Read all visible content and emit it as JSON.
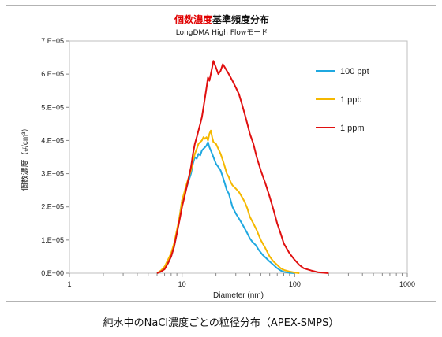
{
  "chart_data": {
    "type": "line",
    "title_parts": [
      {
        "text": "個数濃度",
        "color": "#e00000"
      },
      {
        "text": "基準頻度分布",
        "color": "#111111"
      }
    ],
    "subtitle": "LongDMA High Flowモード",
    "xlabel": "Diameter (nm)",
    "ylabel": "個数濃度（#/cm³）",
    "x_scale": "log",
    "xlim": [
      1,
      1000
    ],
    "ylim": [
      0,
      700000
    ],
    "x_ticks": [
      {
        "value": 1,
        "label": "1"
      },
      {
        "value": 10,
        "label": "10"
      },
      {
        "value": 100,
        "label": "100"
      },
      {
        "value": 1000,
        "label": "1000"
      }
    ],
    "y_ticks": [
      {
        "value": 0,
        "label": "0.E+00"
      },
      {
        "value": 100000,
        "label": "1.E+05"
      },
      {
        "value": 200000,
        "label": "2.E+05"
      },
      {
        "value": 300000,
        "label": "3.E+05"
      },
      {
        "value": 400000,
        "label": "4.E+05"
      },
      {
        "value": 500000,
        "label": "5.E+05"
      },
      {
        "value": 600000,
        "label": "6.E+05"
      },
      {
        "value": 700000,
        "label": "7.E+05"
      }
    ],
    "grid": false,
    "legend_position": "top-right",
    "series": [
      {
        "name": "100 ppt",
        "color": "#1fa8e0",
        "points": [
          [
            6.0,
            0
          ],
          [
            6.5,
            5000
          ],
          [
            7.0,
            15000
          ],
          [
            7.5,
            30000
          ],
          [
            8.0,
            50000
          ],
          [
            8.5,
            80000
          ],
          [
            9.0,
            120000
          ],
          [
            9.5,
            170000
          ],
          [
            10.0,
            220000
          ],
          [
            10.5,
            240000
          ],
          [
            11.0,
            260000
          ],
          [
            11.5,
            280000
          ],
          [
            12.0,
            300000
          ],
          [
            12.5,
            330000
          ],
          [
            13.0,
            350000
          ],
          [
            13.5,
            345000
          ],
          [
            14.0,
            360000
          ],
          [
            14.5,
            355000
          ],
          [
            15.0,
            370000
          ],
          [
            15.5,
            375000
          ],
          [
            16.0,
            380000
          ],
          [
            16.5,
            385000
          ],
          [
            17.0,
            395000
          ],
          [
            17.5,
            380000
          ],
          [
            18.0,
            370000
          ],
          [
            18.5,
            360000
          ],
          [
            19.0,
            350000
          ],
          [
            20.0,
            330000
          ],
          [
            21.0,
            320000
          ],
          [
            22.0,
            310000
          ],
          [
            23.0,
            290000
          ],
          [
            24.0,
            270000
          ],
          [
            25.0,
            250000
          ],
          [
            26.0,
            240000
          ],
          [
            27.0,
            220000
          ],
          [
            28.0,
            200000
          ],
          [
            30.0,
            180000
          ],
          [
            32.0,
            165000
          ],
          [
            34.0,
            150000
          ],
          [
            36.0,
            135000
          ],
          [
            38.0,
            120000
          ],
          [
            40.0,
            105000
          ],
          [
            42.0,
            95000
          ],
          [
            45.0,
            85000
          ],
          [
            48.0,
            70000
          ],
          [
            52.0,
            55000
          ],
          [
            56.0,
            45000
          ],
          [
            60.0,
            35000
          ],
          [
            65.0,
            25000
          ],
          [
            70.0,
            15000
          ],
          [
            75.0,
            8000
          ],
          [
            80.0,
            4000
          ],
          [
            90.0,
            1000
          ],
          [
            100.0,
            0
          ]
        ]
      },
      {
        "name": "1 ppb",
        "color": "#f5b800",
        "points": [
          [
            6.0,
            0
          ],
          [
            6.5,
            8000
          ],
          [
            7.0,
            20000
          ],
          [
            7.5,
            40000
          ],
          [
            8.0,
            60000
          ],
          [
            8.5,
            90000
          ],
          [
            9.0,
            130000
          ],
          [
            9.5,
            170000
          ],
          [
            10.0,
            220000
          ],
          [
            10.5,
            245000
          ],
          [
            11.0,
            270000
          ],
          [
            11.5,
            290000
          ],
          [
            12.0,
            310000
          ],
          [
            12.5,
            340000
          ],
          [
            13.0,
            360000
          ],
          [
            13.5,
            375000
          ],
          [
            14.0,
            390000
          ],
          [
            14.5,
            395000
          ],
          [
            15.0,
            400000
          ],
          [
            15.5,
            410000
          ],
          [
            16.0,
            405000
          ],
          [
            16.5,
            410000
          ],
          [
            17.0,
            400000
          ],
          [
            17.5,
            420000
          ],
          [
            18.0,
            430000
          ],
          [
            18.5,
            410000
          ],
          [
            19.0,
            395000
          ],
          [
            20.0,
            390000
          ],
          [
            21.0,
            375000
          ],
          [
            22.0,
            360000
          ],
          [
            23.0,
            340000
          ],
          [
            24.0,
            320000
          ],
          [
            25.0,
            300000
          ],
          [
            26.0,
            290000
          ],
          [
            27.0,
            275000
          ],
          [
            28.0,
            265000
          ],
          [
            30.0,
            255000
          ],
          [
            32.0,
            245000
          ],
          [
            34.0,
            230000
          ],
          [
            36.0,
            215000
          ],
          [
            38.0,
            195000
          ],
          [
            40.0,
            170000
          ],
          [
            43.0,
            150000
          ],
          [
            46.0,
            130000
          ],
          [
            50.0,
            100000
          ],
          [
            55.0,
            75000
          ],
          [
            60.0,
            50000
          ],
          [
            65.0,
            35000
          ],
          [
            70.0,
            25000
          ],
          [
            75.0,
            15000
          ],
          [
            80.0,
            10000
          ],
          [
            90.0,
            5000
          ],
          [
            100.0,
            2000
          ],
          [
            110.0,
            0
          ]
        ]
      },
      {
        "name": "1 ppm",
        "color": "#e01010",
        "points": [
          [
            6.0,
            0
          ],
          [
            6.5,
            5000
          ],
          [
            7.0,
            12000
          ],
          [
            7.5,
            30000
          ],
          [
            8.0,
            50000
          ],
          [
            8.5,
            80000
          ],
          [
            9.0,
            120000
          ],
          [
            9.5,
            160000
          ],
          [
            10.0,
            200000
          ],
          [
            10.5,
            230000
          ],
          [
            11.0,
            260000
          ],
          [
            11.5,
            290000
          ],
          [
            12.0,
            320000
          ],
          [
            12.5,
            360000
          ],
          [
            13.0,
            390000
          ],
          [
            13.5,
            410000
          ],
          [
            14.0,
            430000
          ],
          [
            14.5,
            450000
          ],
          [
            15.0,
            470000
          ],
          [
            15.5,
            500000
          ],
          [
            16.0,
            530000
          ],
          [
            16.5,
            560000
          ],
          [
            17.0,
            590000
          ],
          [
            17.5,
            580000
          ],
          [
            18.0,
            600000
          ],
          [
            18.5,
            620000
          ],
          [
            19.0,
            640000
          ],
          [
            20.0,
            620000
          ],
          [
            21.0,
            600000
          ],
          [
            22.0,
            610000
          ],
          [
            23.0,
            630000
          ],
          [
            24.0,
            620000
          ],
          [
            25.0,
            610000
          ],
          [
            26.0,
            600000
          ],
          [
            27.0,
            590000
          ],
          [
            28.0,
            580000
          ],
          [
            30.0,
            560000
          ],
          [
            32.0,
            540000
          ],
          [
            34.0,
            510000
          ],
          [
            36.0,
            480000
          ],
          [
            38.0,
            450000
          ],
          [
            40.0,
            420000
          ],
          [
            43.0,
            390000
          ],
          [
            46.0,
            350000
          ],
          [
            50.0,
            310000
          ],
          [
            55.0,
            270000
          ],
          [
            60.0,
            230000
          ],
          [
            65.0,
            190000
          ],
          [
            70.0,
            150000
          ],
          [
            75.0,
            120000
          ],
          [
            80.0,
            90000
          ],
          [
            90.0,
            60000
          ],
          [
            100.0,
            40000
          ],
          [
            110.0,
            25000
          ],
          [
            120.0,
            15000
          ],
          [
            140.0,
            8000
          ],
          [
            160.0,
            3000
          ],
          [
            200.0,
            0
          ]
        ]
      }
    ]
  },
  "caption": "純水中のNaCl濃度ごとの粒径分布（APEX-SMPS）"
}
